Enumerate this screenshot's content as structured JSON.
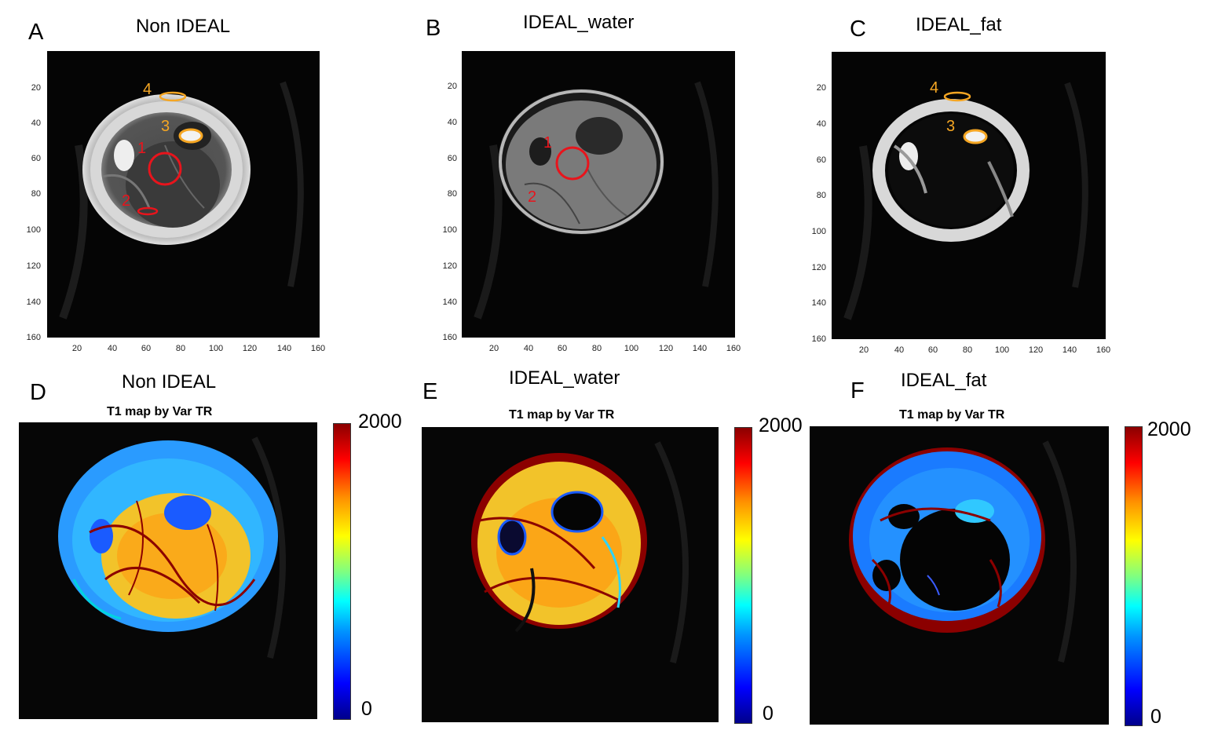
{
  "panels_top": [
    {
      "letter": "A",
      "title": "Non IDEAL",
      "roi_labels": [
        "1",
        "2",
        "3",
        "4"
      ]
    },
    {
      "letter": "B",
      "title": "IDEAL_water",
      "roi_labels": [
        "1",
        "2"
      ]
    },
    {
      "letter": "C",
      "title": "IDEAL_fat",
      "roi_labels": [
        "3",
        "4"
      ]
    }
  ],
  "panels_bottom": [
    {
      "letter": "D",
      "title": "Non IDEAL",
      "subtitle": "T1 map by Var TR"
    },
    {
      "letter": "E",
      "title": "IDEAL_water",
      "subtitle": "T1 map by Var TR"
    },
    {
      "letter": "F",
      "title": "IDEAL_fat",
      "subtitle": "T1 map by Var TR"
    }
  ],
  "axis": {
    "x_ticks": [
      "20",
      "40",
      "60",
      "80",
      "100",
      "120",
      "140",
      "160"
    ],
    "y_ticks": [
      "20",
      "40",
      "60",
      "80",
      "100",
      "120",
      "140",
      "160"
    ]
  },
  "colorbar": {
    "max_label": "2000",
    "min_label": "0",
    "colormap": "jet"
  },
  "colors": {
    "roi_red": "#e8141c",
    "roi_orange": "#f5a623"
  }
}
